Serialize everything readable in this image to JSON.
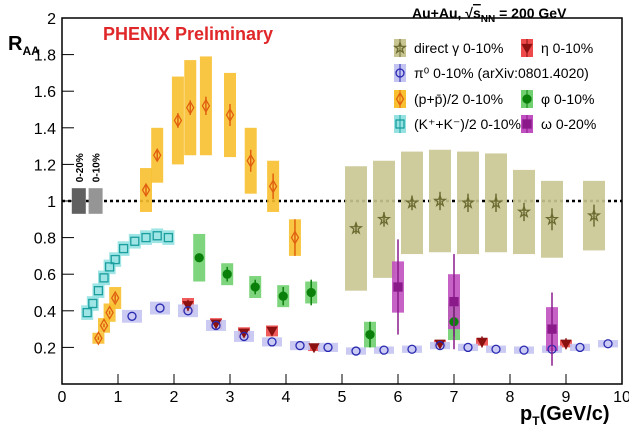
{
  "chart_data": {
    "type": "scatter",
    "title": "PHENIX Preliminary",
    "y_label": {
      "main": "R",
      "sub": "AA"
    },
    "x_label": {
      "main": "p",
      "sub": "T",
      "rest": "(GeV/c)"
    },
    "legend_header": [
      "Au+Au, √",
      "s",
      "NN",
      " = 200 GeV"
    ],
    "xlim": [
      0,
      10
    ],
    "xticks": [
      0,
      1,
      2,
      3,
      4,
      5,
      6,
      7,
      8,
      9,
      10
    ],
    "ylim": [
      0,
      2
    ],
    "yticks": [
      0.2,
      0.4,
      0.6,
      0.8,
      1,
      1.2,
      1.4,
      1.6,
      1.8,
      2
    ],
    "reference_line": 1,
    "norm_boxes": [
      {
        "label": "0-20%",
        "x": 0.3,
        "value": 1,
        "sys": 0.07,
        "color": "#606060"
      },
      {
        "label": "0-10%",
        "x": 0.6,
        "value": 1,
        "sys": 0.07,
        "color": "#959595"
      }
    ],
    "series": [
      {
        "name": "direct γ 0-10%",
        "marker": "star",
        "color": "#6b6b30",
        "box_color": "#c9c592",
        "x": [
          5.25,
          5.75,
          6.25,
          6.75,
          7.25,
          7.75,
          8.25,
          8.75,
          9.5
        ],
        "values": [
          0.85,
          0.9,
          0.99,
          1.0,
          0.99,
          0.99,
          0.94,
          0.9,
          0.92
        ],
        "sys": [
          0.34,
          0.32,
          0.28,
          0.28,
          0.28,
          0.27,
          0.23,
          0.21,
          0.19
        ],
        "errors": [
          0.03,
          0.04,
          0.04,
          0.05,
          0.05,
          0.05,
          0.05,
          0.06,
          0.06
        ]
      },
      {
        "name": "η 0-10%",
        "marker": "triangle-down",
        "color": "#8b1010",
        "box_color": "#ee4a4a",
        "x": [
          2.25,
          2.75,
          3.25,
          3.75,
          4.5,
          6.75,
          7.5,
          9.0
        ],
        "values": [
          0.43,
          0.33,
          0.28,
          0.29,
          0.2,
          0.22,
          0.23,
          0.22
        ],
        "sys": [
          0.04,
          0.03,
          0.03,
          0.03,
          0.02,
          0.02,
          0.02,
          0.02
        ],
        "errors": [
          0.03,
          0.02,
          0.02,
          0.02,
          0.02,
          0.02,
          0.03,
          0.03
        ]
      },
      {
        "name": "π⁰ 0-10% (arXiv:0801.4020)",
        "marker": "circle",
        "color": "#2828b0",
        "box_color": "#c4c4f2",
        "x": [
          1.25,
          1.75,
          2.25,
          2.75,
          3.25,
          3.75,
          4.25,
          4.75,
          5.25,
          5.75,
          6.25,
          6.75,
          7.25,
          7.75,
          8.25,
          8.75,
          9.25,
          9.75
        ],
        "values": [
          0.37,
          0.415,
          0.4,
          0.32,
          0.26,
          0.23,
          0.21,
          0.2,
          0.18,
          0.185,
          0.19,
          0.21,
          0.2,
          0.19,
          0.185,
          0.19,
          0.2,
          0.22
        ],
        "sys": [
          0.035,
          0.035,
          0.035,
          0.03,
          0.03,
          0.025,
          0.025,
          0.025,
          0.02,
          0.02,
          0.02,
          0.02,
          0.02,
          0.02,
          0.02,
          0.02,
          0.02,
          0.02
        ]
      },
      {
        "name": "(p+p̄)/2 0-10%",
        "marker": "diamond",
        "color": "#e06010",
        "box_color": "#f8c030",
        "x": [
          0.65,
          0.75,
          0.85,
          0.95,
          1.5,
          1.7,
          2.07,
          2.29,
          2.57,
          3.0,
          3.37,
          3.77,
          4.16
        ],
        "values": [
          0.25,
          0.32,
          0.39,
          0.47,
          1.06,
          1.25,
          1.44,
          1.51,
          1.52,
          1.47,
          1.22,
          1.08,
          0.8
        ],
        "sys": [
          0.03,
          0.04,
          0.05,
          0.06,
          0.12,
          0.15,
          0.24,
          0.26,
          0.27,
          0.23,
          0.18,
          0.14,
          0.1
        ],
        "errors": [
          0.01,
          0.01,
          0.01,
          0.02,
          0.03,
          0.03,
          0.04,
          0.04,
          0.05,
          0.06,
          0.06,
          0.07,
          0.1
        ]
      },
      {
        "name": "φ 0-10%",
        "marker": "circle-filled",
        "color": "#0a800a",
        "box_color": "#70d070",
        "x": [
          2.45,
          2.95,
          3.45,
          3.95,
          4.45,
          5.5,
          7.0
        ],
        "values": [
          0.69,
          0.6,
          0.53,
          0.48,
          0.5,
          0.27,
          0.34
        ],
        "sys": [
          0.13,
          0.06,
          0.06,
          0.06,
          0.06,
          0.07,
          0.1
        ],
        "errors": [
          0.02,
          0.04,
          0.04,
          0.05,
          0.07,
          0.07,
          0.08
        ]
      },
      {
        "name": "(K⁺+K⁻)/2 0-10%",
        "marker": "square",
        "color": "#1a9e9e",
        "box_color": "#96e2e2",
        "x": [
          0.45,
          0.55,
          0.65,
          0.75,
          0.85,
          0.95,
          1.1,
          1.3,
          1.5,
          1.7,
          1.9
        ],
        "values": [
          0.39,
          0.44,
          0.51,
          0.58,
          0.64,
          0.68,
          0.74,
          0.78,
          0.8,
          0.81,
          0.8
        ],
        "sys": [
          0.04,
          0.04,
          0.04,
          0.04,
          0.04,
          0.04,
          0.04,
          0.04,
          0.04,
          0.04,
          0.04
        ]
      },
      {
        "name": "ω 0-20%",
        "marker": "square-filled",
        "color": "#8a1a8a",
        "box_color": "#c050c0",
        "x": [
          6.0,
          7.0,
          8.75
        ],
        "values": [
          0.53,
          0.45,
          0.3
        ],
        "sys": [
          0.14,
          0.15,
          0.12
        ],
        "errors": [
          0.26,
          0.26,
          0.2
        ]
      }
    ]
  }
}
